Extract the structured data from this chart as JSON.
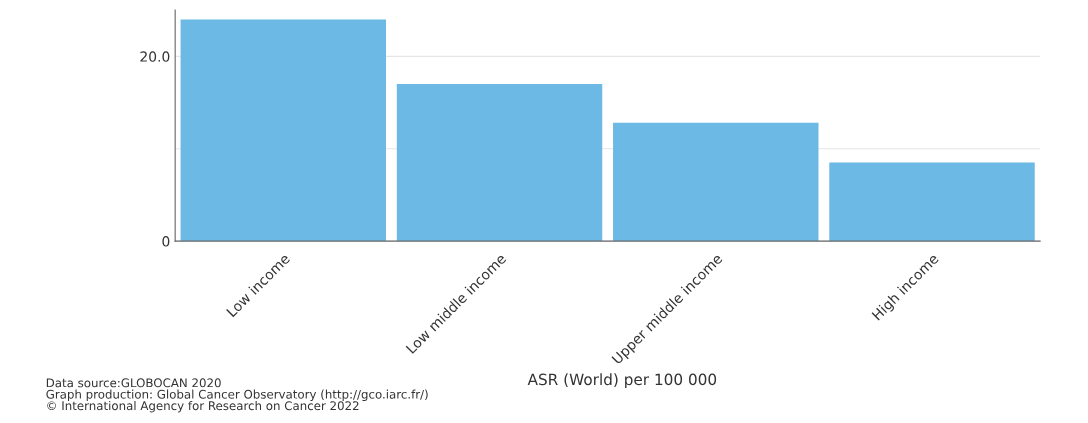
{
  "chart_data": {
    "type": "bar",
    "xlabel": "ASR (World) per 100 000",
    "categories": [
      "Low income",
      "Low middle income",
      "Upper middle income",
      "High income"
    ],
    "values": [
      24.0,
      17.0,
      12.8,
      8.5
    ],
    "color": "#6bb9e4",
    "ylim": [
      0,
      25
    ],
    "yticks": [
      0,
      {
        "value": 10,
        "label": null
      },
      {
        "value": 20,
        "label": "20.0"
      }
    ],
    "grid": "y",
    "annotations": [
      "Data source:GLOBOCAN 2020\nGraph production: Global Cancer Observatory (http://gco.iarc.fr/)\n© International Agency for Research on Cancer 2022"
    ]
  }
}
